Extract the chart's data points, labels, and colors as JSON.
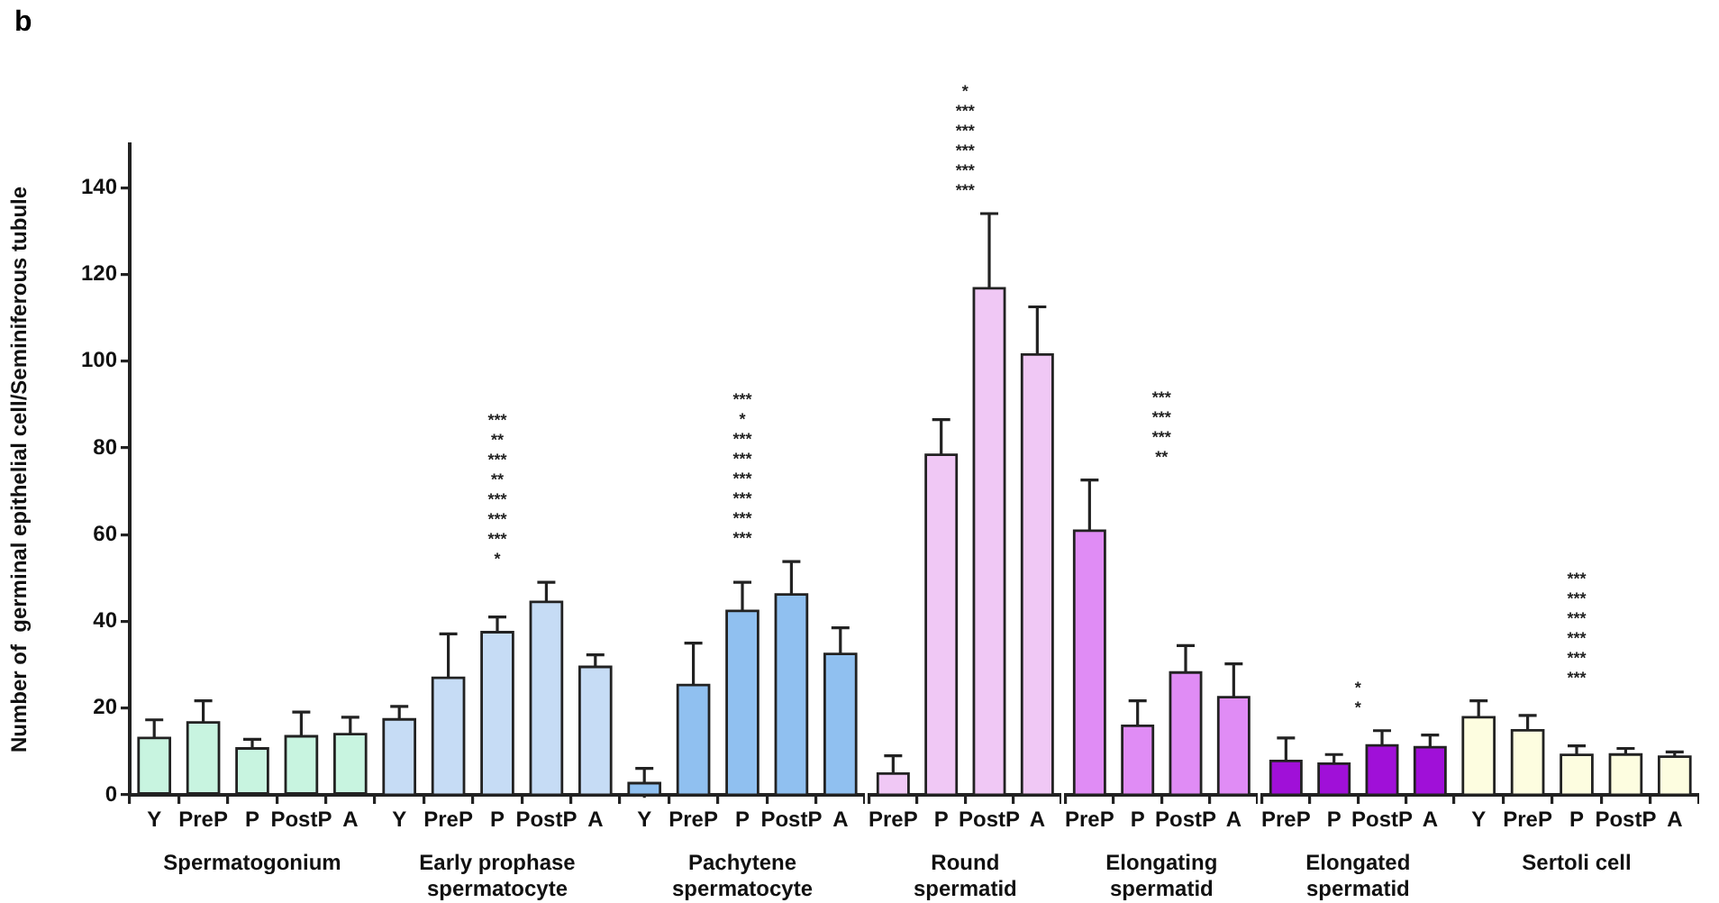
{
  "chart_data": [
    {
      "type": "bar",
      "title": "b",
      "ylabel": "Number of  germinal epithelial cell/Seminiferous tubule",
      "xlabel": "Spermatogonium",
      "categories": [
        "Y",
        "PreP",
        "P",
        "PostP",
        "A"
      ],
      "colors": [
        "#c8f4e0",
        "#c8f4e0",
        "#c8f4e0",
        "#c8f4e0",
        "#c8f4e0"
      ],
      "values": [
        13.1,
        16.7,
        10.7,
        13.5,
        14
      ],
      "errors": [
        4.2,
        5,
        2.1,
        5.6,
        3.9
      ],
      "ylim": [
        0,
        150
      ],
      "yticks": [
        0,
        20,
        40,
        60,
        80,
        100,
        120,
        140
      ]
    },
    {
      "type": "bar",
      "xlabel": "Early prophase spermatocyte",
      "categories": [
        "Y",
        "PreP",
        "P",
        "PostP",
        "A"
      ],
      "colors": [
        "#c6dcf5",
        "#c6dcf5",
        "#c6dcf5",
        "#c6dcf5",
        "#c6dcf5"
      ],
      "values": [
        17.4,
        27,
        37.5,
        44.5,
        29.5
      ],
      "errors": [
        3,
        10.1,
        3.5,
        4.5,
        2.8
      ],
      "yticks": [
        0,
        20,
        40,
        60,
        80,
        100,
        120,
        140
      ],
      "tick_labels": "x",
      "annotations": [
        "*",
        "***",
        "***",
        "***",
        "**",
        "***",
        "**",
        "***"
      ]
    },
    {
      "type": "bar",
      "xlabel": "Pachytene spermatocyte",
      "categories": [
        "Y",
        "PreP",
        "P",
        "PostP",
        "A"
      ],
      "colors": [
        "#90c0f0",
        "#90c0f0",
        "#90c0f0",
        "#90c0f0",
        "#90c0f0"
      ],
      "values": [
        2.7,
        25.3,
        42.4,
        46.2,
        32.5
      ],
      "errors": [
        3.4,
        9.7,
        6.6,
        7.6,
        6
      ],
      "yticks": [
        0,
        20,
        40,
        60,
        80,
        100,
        120,
        140
      ],
      "tick_labels": "x",
      "annotations": [
        "***",
        "***",
        "***",
        "***",
        "***",
        "***",
        "*",
        "***"
      ]
    },
    {
      "type": "bar",
      "xlabel": "Round spermatid",
      "categories": [
        "PreP",
        "P",
        "PostP",
        "A"
      ],
      "colors": [
        "#f0c8f5",
        "#f0c8f5",
        "#f0c8f5",
        "#f0c8f5"
      ],
      "values": [
        4.9,
        78.4,
        116.8,
        101.5
      ],
      "errors": [
        4.1,
        8.1,
        17.2,
        11
      ],
      "yticks": [
        0,
        20,
        40,
        60,
        80,
        100,
        120,
        140
      ],
      "tick_labels": "x",
      "annotations": [
        "***",
        "***",
        "***",
        "***",
        "***",
        "*"
      ]
    },
    {
      "type": "bar",
      "xlabel": "Elongating spermatid",
      "categories": [
        "PreP",
        "P",
        "PostP",
        "A"
      ],
      "colors": [
        "#e08cf5",
        "#e08cf5",
        "#e08cf5",
        "#e08cf5"
      ],
      "values": [
        60.9,
        15.9,
        28.2,
        22.5
      ],
      "errors": [
        11.7,
        5.8,
        6.2,
        7.7
      ],
      "yticks": [
        0,
        20,
        40,
        60,
        80,
        100,
        120,
        140
      ],
      "tick_labels": "x",
      "annotations": [
        "**",
        "***",
        "***",
        "***"
      ]
    },
    {
      "type": "bar",
      "xlabel": "Elongated spermatid",
      "categories": [
        "PreP",
        "P",
        "PostP",
        "A"
      ],
      "colors": [
        "#a010d8",
        "#a010d8",
        "#a010d8",
        "#a010d8"
      ],
      "values": [
        7.8,
        7.2,
        11.4,
        11
      ],
      "errors": [
        5.3,
        2.1,
        3.4,
        2.8
      ],
      "yticks": [
        0,
        20,
        40,
        60,
        80,
        100,
        120,
        140
      ],
      "tick_labels": "x",
      "annotations": [
        "*",
        "*"
      ]
    },
    {
      "type": "bar",
      "xlabel": "Sertoli cell",
      "categories": [
        "Y",
        "PreP",
        "P",
        "PostP",
        "A"
      ],
      "colors": [
        "#fdfde0",
        "#fdfde0",
        "#fdfde0",
        "#fdfde0",
        "#fdfde0"
      ],
      "values": [
        17.9,
        14.9,
        9.2,
        9.3,
        8.8
      ],
      "errors": [
        3.8,
        3.4,
        2.1,
        1.4,
        1.1
      ],
      "yticks": [
        0,
        20,
        40,
        60,
        80,
        100,
        120,
        140
      ],
      "tick_labels": "x",
      "annotations": [
        "***",
        "***",
        "***",
        "***",
        "***",
        "***"
      ]
    }
  ]
}
